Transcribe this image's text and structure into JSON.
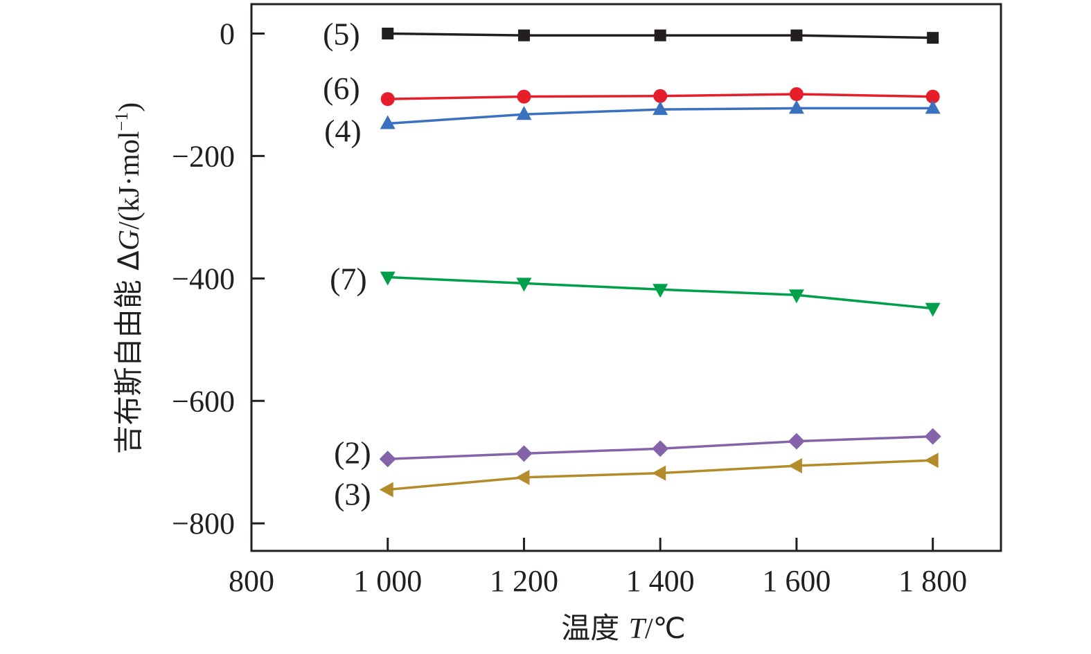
{
  "chart_data": {
    "type": "line",
    "title": "",
    "xlabel": "温度 T/℃",
    "xlabel_parts": {
      "prefix": "温度 ",
      "var": "T",
      "suffix": "/℃"
    },
    "ylabel": "吉布斯自由能 ΔG/(kJ·mol⁻¹)",
    "ylabel_parts": {
      "prefix": "吉布斯自由能 Δ",
      "var": "G",
      "unit": "/(kJ·mol",
      "exp": "−1",
      "close": ")"
    },
    "xlim": [
      800,
      1900
    ],
    "ylim": [
      -845,
      48
    ],
    "x_ticks": [
      800,
      1000,
      1200,
      1400,
      1600,
      1800
    ],
    "x_tick_labels": [
      "800",
      "1 000",
      "1 200",
      "1 400",
      "1 600",
      "1 800"
    ],
    "y_ticks": [
      0,
      -200,
      -400,
      -600,
      -800
    ],
    "y_tick_labels": [
      "0",
      "−200",
      "−400",
      "−600",
      "−800"
    ],
    "grid": false,
    "legend": "inline labels at left of each series",
    "x": [
      1000,
      1200,
      1400,
      1600,
      1800
    ],
    "series": [
      {
        "name": "(5)",
        "marker": "square",
        "color": "#231f20",
        "values": [
          0,
          -3,
          -3,
          -3,
          -7
        ]
      },
      {
        "name": "(6)",
        "marker": "circle",
        "color": "#e61e2a",
        "values": [
          -107,
          -103,
          -102,
          -99,
          -103
        ]
      },
      {
        "name": "(4)",
        "marker": "triangle-up",
        "color": "#3a71bf",
        "values": [
          -147,
          -132,
          -124,
          -122,
          -122
        ]
      },
      {
        "name": "(7)",
        "marker": "triangle-down",
        "color": "#00a04b",
        "values": [
          -398,
          -408,
          -418,
          -427,
          -449
        ]
      },
      {
        "name": "(2)",
        "marker": "diamond",
        "color": "#8463a8",
        "values": [
          -695,
          -686,
          -678,
          -666,
          -658
        ]
      },
      {
        "name": "(3)",
        "marker": "triangle-left",
        "color": "#b38b2a",
        "values": [
          -745,
          -725,
          -718,
          -706,
          -697
        ]
      }
    ]
  }
}
